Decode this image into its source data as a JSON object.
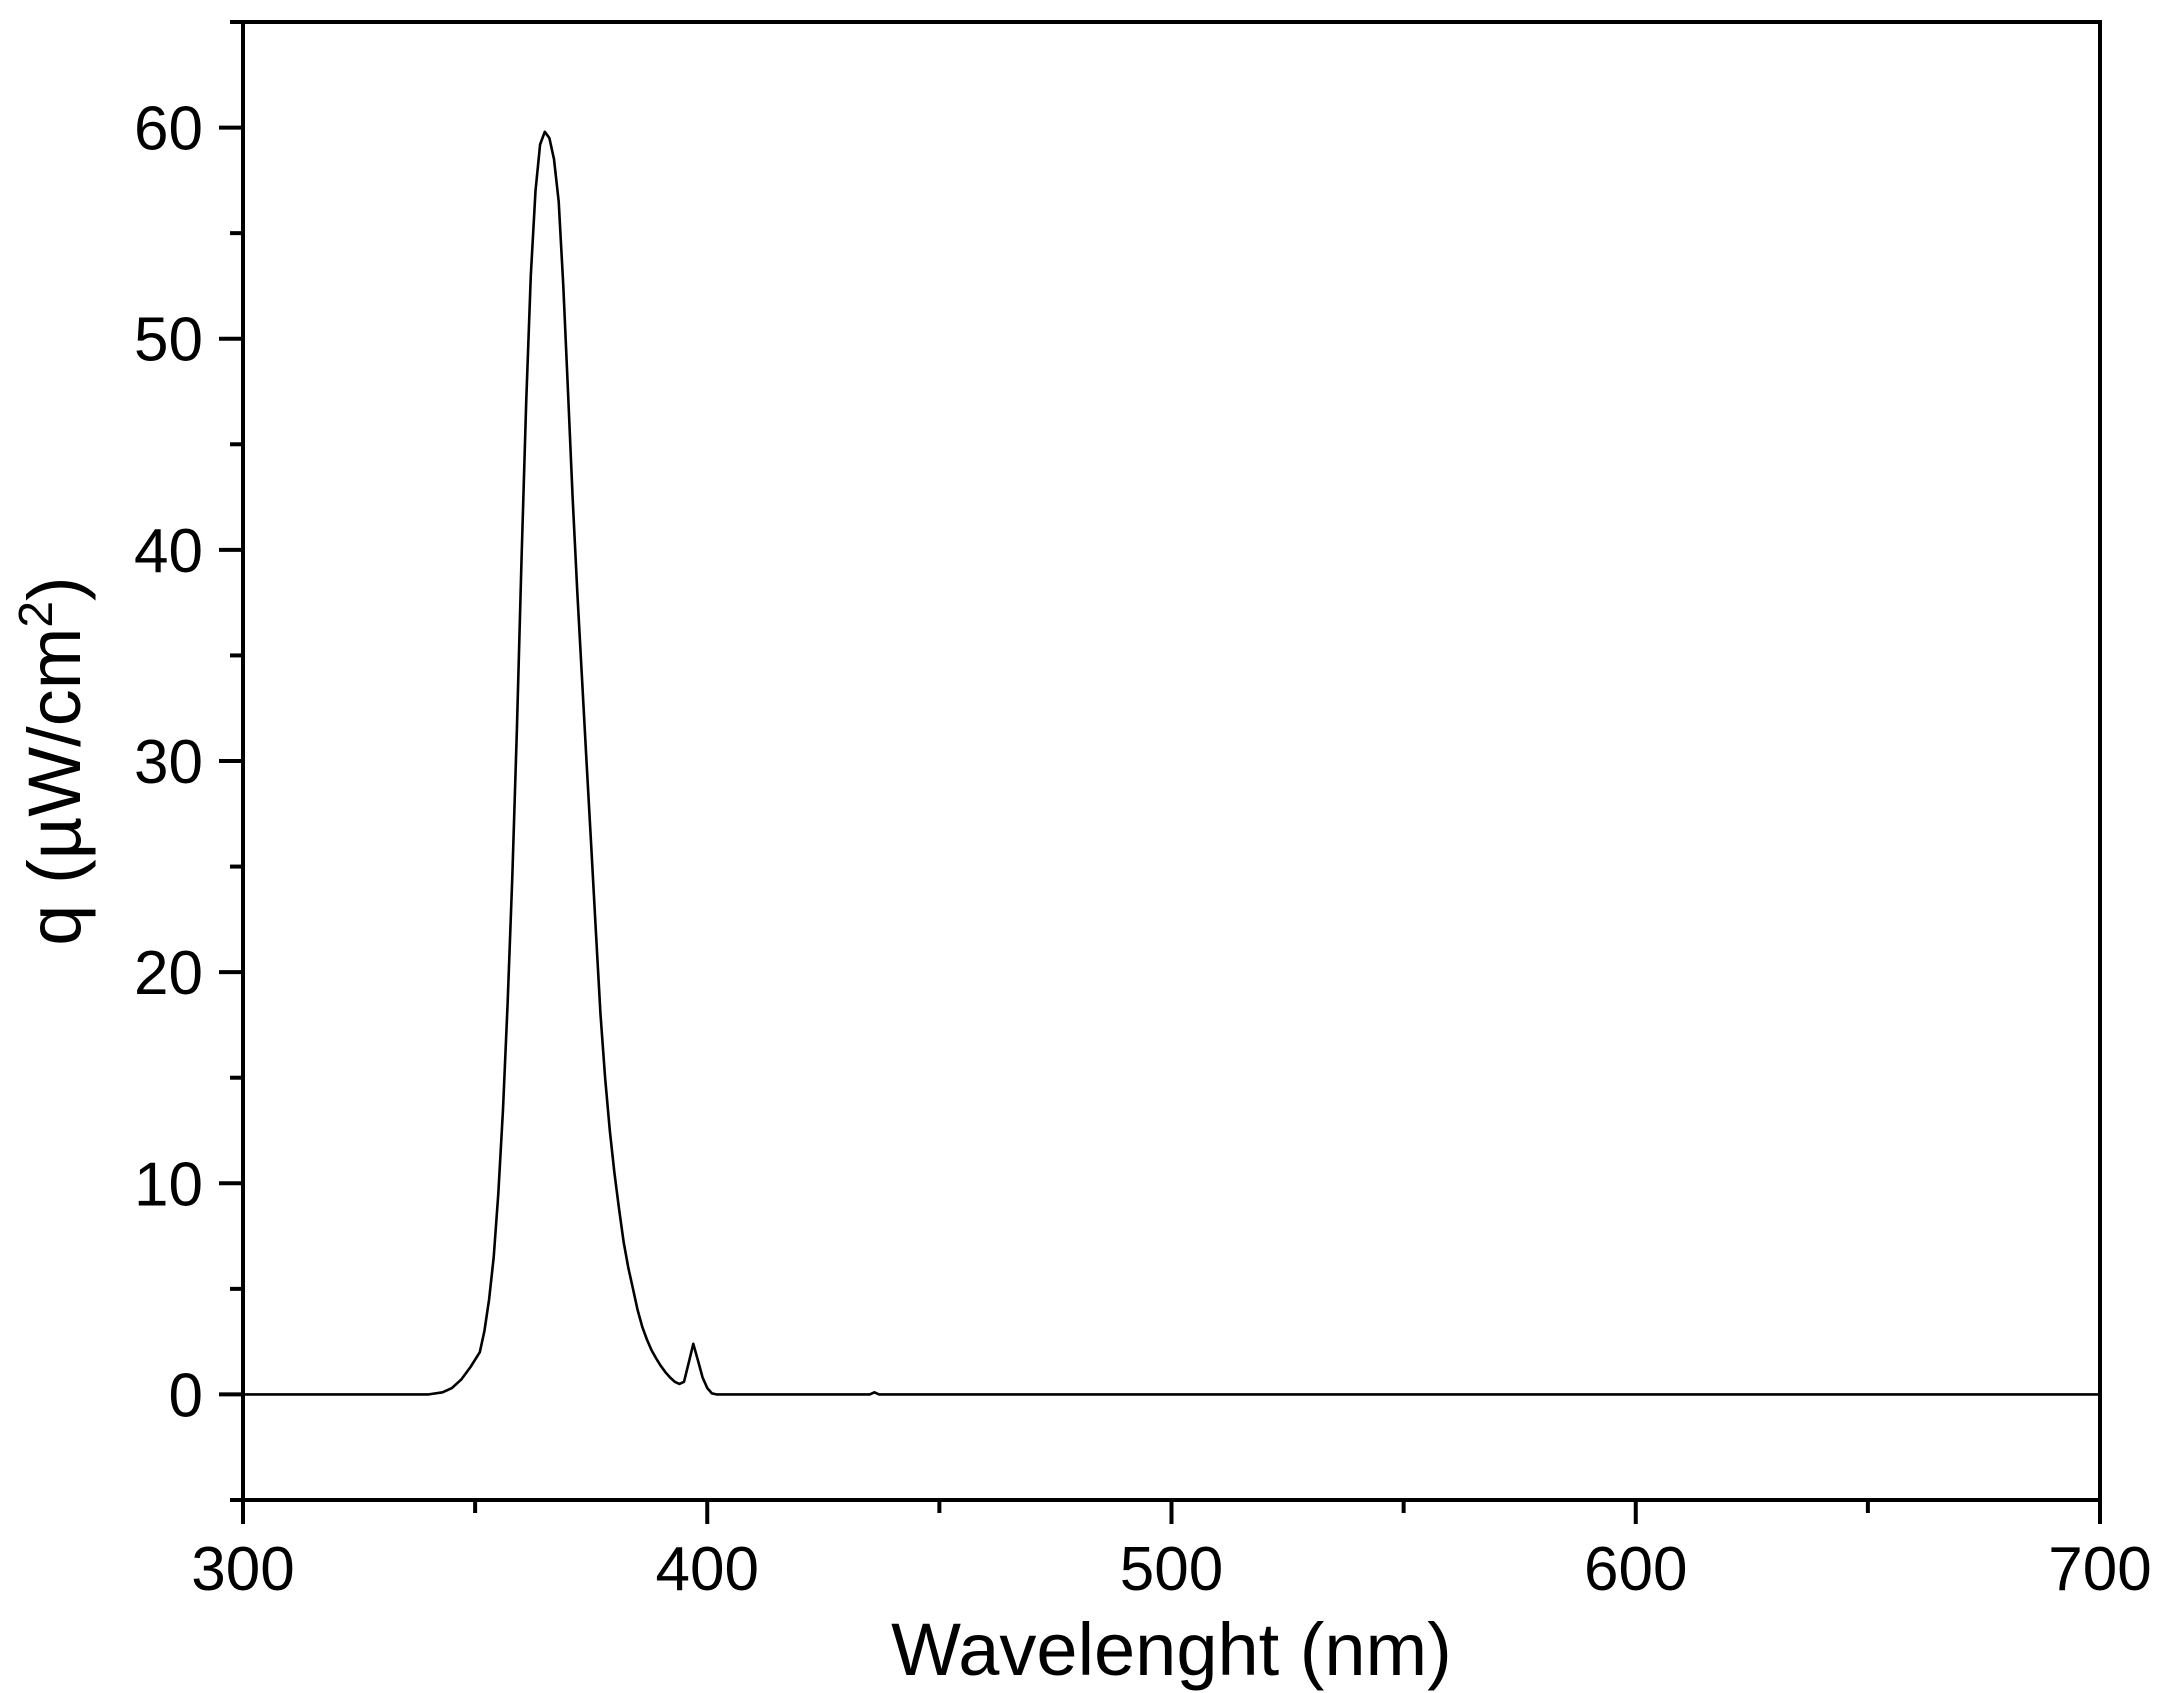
{
  "chart_data": {
    "type": "line",
    "title": "",
    "xlabel": "Wavelenght (nm)",
    "ylabel_main": "q (µW/cm",
    "ylabel_sup": "2",
    "ylabel_close": ")",
    "xlim": [
      300,
      700
    ],
    "ylim": [
      -5,
      65
    ],
    "x_ticks": [
      300,
      400,
      500,
      600,
      700
    ],
    "x_tick_labels": [
      "300",
      "400",
      "500",
      "600",
      "700"
    ],
    "x_minor_ticks": [
      350,
      450,
      550,
      650
    ],
    "y_ticks": [
      0,
      10,
      20,
      30,
      40,
      50,
      60
    ],
    "y_tick_labels": [
      "0",
      "10",
      "20",
      "30",
      "40",
      "50",
      "60"
    ],
    "y_minor_ticks": [
      -5,
      5,
      15,
      25,
      35,
      45,
      55,
      65
    ],
    "grid": false,
    "legend": "none",
    "line_color": "#000000",
    "series": [
      {
        "x": [
          300,
          340,
          343,
          345,
          347,
          349,
          351,
          352,
          353,
          354,
          355,
          356,
          357,
          358,
          359,
          360,
          361,
          362,
          363,
          364,
          365,
          366,
          367,
          368,
          369,
          370,
          371,
          372,
          373,
          374,
          375,
          376,
          377,
          378,
          379,
          380,
          381,
          382,
          383,
          384,
          385,
          386,
          387,
          388,
          389,
          390,
          391,
          392,
          393,
          394,
          395,
          396,
          397,
          398,
          399,
          400,
          401,
          402,
          403,
          404,
          405,
          406,
          407,
          408,
          409,
          410,
          435,
          436,
          437,
          700
        ],
        "y": [
          0,
          0,
          0.1,
          0.3,
          0.7,
          1.3,
          2.0,
          3.0,
          4.5,
          6.5,
          9.5,
          13.5,
          18.5,
          24.5,
          31.5,
          39.5,
          47.0,
          53.0,
          57.0,
          59.2,
          59.8,
          59.5,
          58.5,
          56.5,
          52.5,
          47.5,
          42.5,
          38.0,
          34.0,
          30.0,
          26.0,
          22.0,
          18.0,
          15.0,
          12.5,
          10.5,
          8.8,
          7.2,
          6.0,
          5.0,
          4.0,
          3.2,
          2.6,
          2.1,
          1.7,
          1.35,
          1.05,
          0.8,
          0.6,
          0.5,
          0.6,
          1.5,
          2.4,
          1.6,
          0.8,
          0.3,
          0.05,
          0,
          0,
          0,
          0,
          0,
          0,
          0,
          0,
          0,
          0,
          0.1,
          0,
          0
        ]
      }
    ]
  }
}
